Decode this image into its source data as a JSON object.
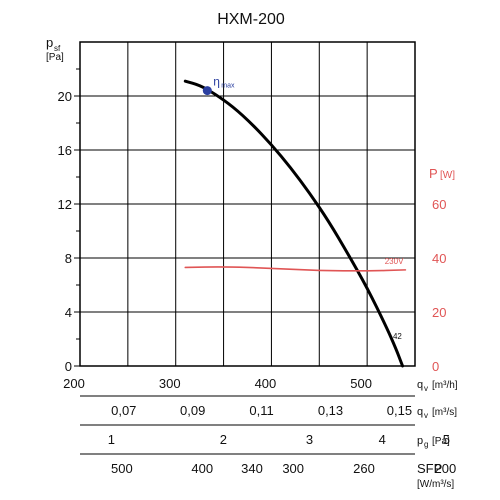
{
  "chart_data": {
    "type": "line",
    "title": "HXM-200",
    "colors": {
      "pressure": "#000000",
      "power": "#e05555",
      "axis": "#000000",
      "grid": "#000000",
      "eta_point": "#2b3fa0",
      "eta_label": "#2b3fa0"
    },
    "left_axis": {
      "label_main": "p",
      "label_sub": "sf",
      "unit": "[Pa]",
      "ylim": [
        0,
        24
      ],
      "ticks": [
        0,
        4,
        8,
        12,
        16,
        20
      ]
    },
    "right_axis": {
      "label": "P",
      "unit": "[W]",
      "ylim": [
        0,
        120
      ],
      "ticks": [
        0,
        20,
        40,
        60
      ]
    },
    "x_axis": {
      "label_main": "q",
      "label_sub": "v",
      "unit": "[m³/h]",
      "xlim": [
        200,
        550
      ],
      "ticks": [
        200,
        300,
        400,
        500
      ]
    },
    "grid": true,
    "vertical_gridlines": [
      250,
      300,
      350,
      400,
      450,
      500,
      550
    ],
    "series": [
      {
        "key": "pressure",
        "axis": "left",
        "x": [
          310,
          325,
          340,
          360,
          380,
          400,
          420,
          440,
          460,
          480,
          500,
          520,
          530,
          537
        ],
        "y": [
          21.1,
          20.8,
          20.2,
          19.2,
          17.9,
          16.4,
          14.7,
          12.8,
          10.7,
          8.3,
          5.8,
          2.9,
          1.3,
          0
        ]
      },
      {
        "key": "power",
        "axis": "right",
        "name": "230V",
        "x": [
          310,
          350,
          400,
          450,
          500,
          540
        ],
        "y": [
          36.5,
          36.8,
          36.2,
          35.3,
          35.2,
          35.6
        ]
      }
    ],
    "eta_max": {
      "x": 333,
      "y": 20.4,
      "symbol": "η",
      "sub": "max"
    },
    "curve_label": {
      "text": "42",
      "x": 527,
      "y": 2.0
    },
    "secondary_scales": [
      {
        "key": "qv_s",
        "label_main": "q",
        "label_sub": "v",
        "unit": "[m³/s]",
        "ticks": [
          {
            "label": "0,07",
            "x": 252
          },
          {
            "label": "0,09",
            "x": 324
          },
          {
            "label": "0,11",
            "x": 396
          },
          {
            "label": "0,13",
            "x": 468
          },
          {
            "label": "0,15",
            "x": 540
          }
        ]
      },
      {
        "key": "pg",
        "label_main": "p",
        "label_sub": "g",
        "unit": "[Pa]",
        "ticks": [
          {
            "label": "1",
            "x": 239
          },
          {
            "label": "2",
            "x": 356
          },
          {
            "label": "3",
            "x": 446
          },
          {
            "label": "4",
            "x": 522
          },
          {
            "label": "5",
            "x": 589
          }
        ]
      },
      {
        "key": "sfp",
        "label_main": "SFP",
        "unit": "[W/m³/s]",
        "ticks": [
          {
            "label": "500",
            "x": 250
          },
          {
            "label": "400",
            "x": 334
          },
          {
            "label": "340",
            "x": 386
          },
          {
            "label": "300",
            "x": 429
          },
          {
            "label": "260",
            "x": 503
          },
          {
            "label": "200",
            "x": 588
          }
        ]
      }
    ]
  }
}
